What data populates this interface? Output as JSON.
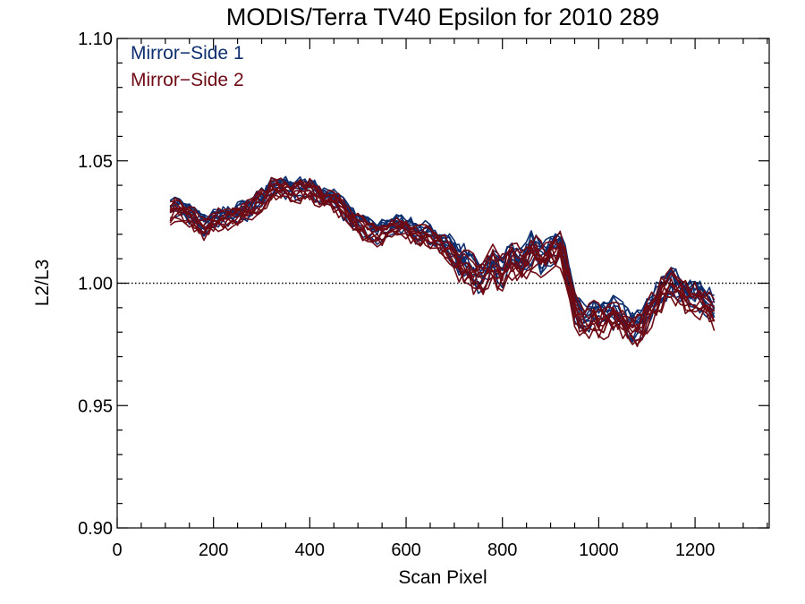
{
  "chart_data": {
    "type": "line",
    "title": "MODIS/Terra TV40 Epsilon for 2010 289",
    "xlabel": "Scan Pixel",
    "ylabel": "L2/L3",
    "xlim": [
      0,
      1354
    ],
    "ylim": [
      0.9,
      1.1
    ],
    "x_ticks": [
      0,
      200,
      400,
      600,
      800,
      1000,
      1200
    ],
    "x_tick_labels": [
      "0",
      "200",
      "400",
      "600",
      "800",
      "1000",
      "1200"
    ],
    "y_ticks": [
      0.9,
      0.95,
      1.0,
      1.05,
      1.1
    ],
    "y_tick_labels": [
      "0.90",
      "0.95",
      "1.00",
      "1.05",
      "1.10"
    ],
    "reference_line": {
      "y": 1.0,
      "style": "dotted"
    },
    "grid": false,
    "legend": {
      "placement": "top-left",
      "entries": [
        {
          "label": "Mirror−Side 1",
          "color": "#0d2f6e"
        },
        {
          "label": "Mirror−Side 2",
          "color": "#6e0a14"
        }
      ]
    },
    "mean_profile": {
      "x": [
        110,
        125,
        140,
        160,
        180,
        200,
        225,
        250,
        275,
        300,
        320,
        340,
        360,
        380,
        400,
        420,
        440,
        460,
        480,
        500,
        520,
        540,
        560,
        580,
        600,
        620,
        640,
        660,
        680,
        700,
        720,
        740,
        760,
        780,
        800,
        820,
        840,
        860,
        880,
        900,
        920,
        935,
        950,
        970,
        990,
        1010,
        1030,
        1050,
        1070,
        1090,
        1110,
        1130,
        1150,
        1170,
        1190,
        1210,
        1230,
        1248
      ],
      "y": [
        1.029,
        1.031,
        1.029,
        1.026,
        1.023,
        1.025,
        1.027,
        1.028,
        1.03,
        1.034,
        1.038,
        1.039,
        1.038,
        1.038,
        1.038,
        1.036,
        1.035,
        1.032,
        1.028,
        1.024,
        1.022,
        1.02,
        1.022,
        1.024,
        1.023,
        1.02,
        1.02,
        1.018,
        1.015,
        1.011,
        1.007,
        1.004,
        1.002,
        1.008,
        1.004,
        1.01,
        1.006,
        1.013,
        1.01,
        1.013,
        1.014,
        1.005,
        0.99,
        0.983,
        0.986,
        0.985,
        0.987,
        0.984,
        0.981,
        0.983,
        0.99,
        0.996,
        1.0,
        0.997,
        0.994,
        0.993,
        0.99,
        0.986
      ]
    },
    "series": [
      {
        "name": "Mirror−Side 1",
        "color": "#0d2f6e",
        "count": 10,
        "spread": 0.0035,
        "noise": 0.0025
      },
      {
        "name": "Mirror−Side 2",
        "color": "#6e0a14",
        "count": 10,
        "spread": 0.0035,
        "noise": 0.0025
      }
    ]
  }
}
